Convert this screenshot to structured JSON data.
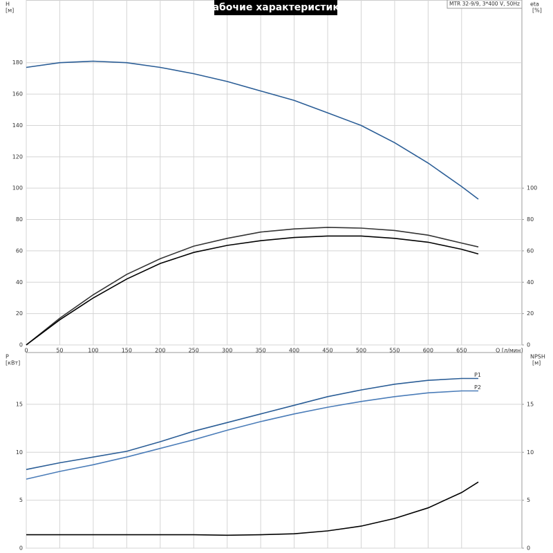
{
  "chart_data": [
    {
      "type": "line",
      "title": "Рабочие характеристики",
      "annotation": "MTR 32-9/9, 3*400 V, 50Hz",
      "y_label": "H",
      "y_unit": "[м]",
      "y2_label": "eta",
      "y2_unit": "[%]",
      "x_label": "Q [л/мин]",
      "x": [
        0,
        50,
        100,
        150,
        200,
        250,
        300,
        350,
        400,
        450,
        500,
        550,
        600,
        650,
        675
      ],
      "xlim": [
        0,
        740
      ],
      "xticks": [
        0,
        50,
        100,
        150,
        200,
        250,
        300,
        350,
        400,
        450,
        500,
        550,
        600,
        650
      ],
      "ylim": [
        0,
        220
      ],
      "yticks": [
        0,
        20,
        40,
        60,
        80,
        100,
        120,
        140,
        160,
        180
      ],
      "y2lim": [
        0,
        220
      ],
      "y2ticks": [
        0,
        20,
        40,
        60,
        80,
        100
      ],
      "grid": true,
      "series": [
        {
          "color": "#2a5d96",
          "values": [
            177,
            180,
            181,
            180,
            177,
            173,
            168,
            162,
            156,
            148,
            140,
            129,
            116,
            101,
            93
          ]
        },
        {
          "color": "#333333",
          "axis": "y2",
          "values": [
            0,
            17,
            32,
            45,
            55,
            63,
            68,
            72,
            74,
            75,
            74.5,
            73,
            70,
            65,
            62.5
          ]
        },
        {
          "color": "#000000",
          "axis": "y2",
          "values": [
            0,
            16,
            30,
            42,
            52,
            59,
            63.5,
            66.5,
            68.5,
            69.5,
            69.5,
            68,
            65.5,
            61,
            58
          ]
        }
      ]
    },
    {
      "type": "line",
      "y_label": "P",
      "y_unit": "[кВт]",
      "y2_label": "NPSH",
      "y2_unit": "[м]",
      "x": [
        0,
        50,
        100,
        150,
        200,
        250,
        300,
        350,
        400,
        450,
        500,
        550,
        600,
        650,
        675
      ],
      "xlim": [
        0,
        740
      ],
      "xticks": [
        0,
        50,
        100,
        150,
        200,
        250,
        300,
        350,
        400,
        450,
        500,
        550,
        600,
        650
      ],
      "ylim": [
        0,
        20.4
      ],
      "yticks": [
        0,
        5,
        10,
        15
      ],
      "y2lim": [
        0,
        20.4
      ],
      "y2ticks": [
        0,
        5,
        10,
        15
      ],
      "grid": true,
      "series": [
        {
          "name": "P1",
          "color": "#2a5d96",
          "values": [
            8.2,
            8.9,
            9.5,
            10.1,
            11.1,
            12.2,
            13.1,
            14.0,
            14.9,
            15.8,
            16.5,
            17.1,
            17.5,
            17.7,
            17.7
          ]
        },
        {
          "name": "P2",
          "color": "#4a7cb8",
          "values": [
            7.2,
            8.0,
            8.7,
            9.5,
            10.4,
            11.3,
            12.3,
            13.2,
            14.0,
            14.7,
            15.3,
            15.8,
            16.2,
            16.4,
            16.4
          ]
        },
        {
          "color": "#000000",
          "axis": "y2",
          "values": [
            1.4,
            1.4,
            1.4,
            1.4,
            1.4,
            1.4,
            1.35,
            1.4,
            1.5,
            1.8,
            2.3,
            3.1,
            4.2,
            5.8,
            6.9
          ]
        }
      ]
    }
  ]
}
